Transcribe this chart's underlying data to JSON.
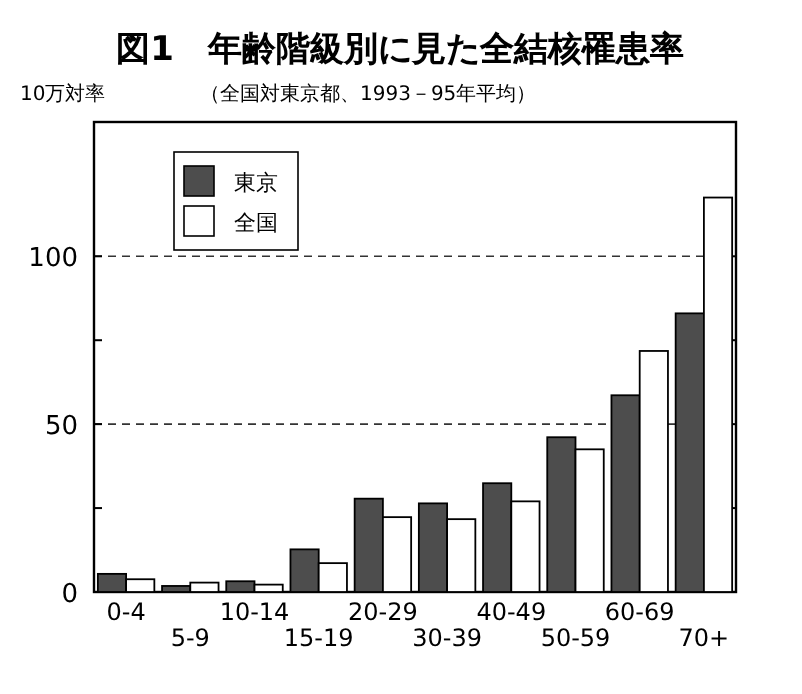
{
  "chart_data": {
    "type": "bar",
    "title": "図1　年齢階級別に見た全結核罹患率",
    "subtitle": "（全国対東京都、1993－95年平均）",
    "ylabel": "10万対率",
    "categories": [
      "0-4",
      "5-9",
      "10-14",
      "15-19",
      "20-29",
      "30-39",
      "40-49",
      "50-59",
      "60-69",
      "70+"
    ],
    "series": [
      {
        "name": "東京",
        "color": "#4d4d4d",
        "values": [
          5.4,
          1.8,
          3.2,
          12.7,
          27.8,
          26.4,
          32.4,
          46.1,
          58.6,
          83.0
        ]
      },
      {
        "name": "全国",
        "color": "#ffffff",
        "values": [
          3.8,
          2.8,
          2.2,
          8.6,
          22.3,
          21.7,
          27.0,
          42.5,
          71.8,
          117.5
        ]
      }
    ],
    "ylim": [
      0,
      140
    ],
    "yticks": [
      0,
      {
        "value": 25,
        "label": null
      },
      50,
      {
        "value": 75,
        "label": null
      },
      100
    ],
    "grid": "y",
    "legend": "top left"
  }
}
